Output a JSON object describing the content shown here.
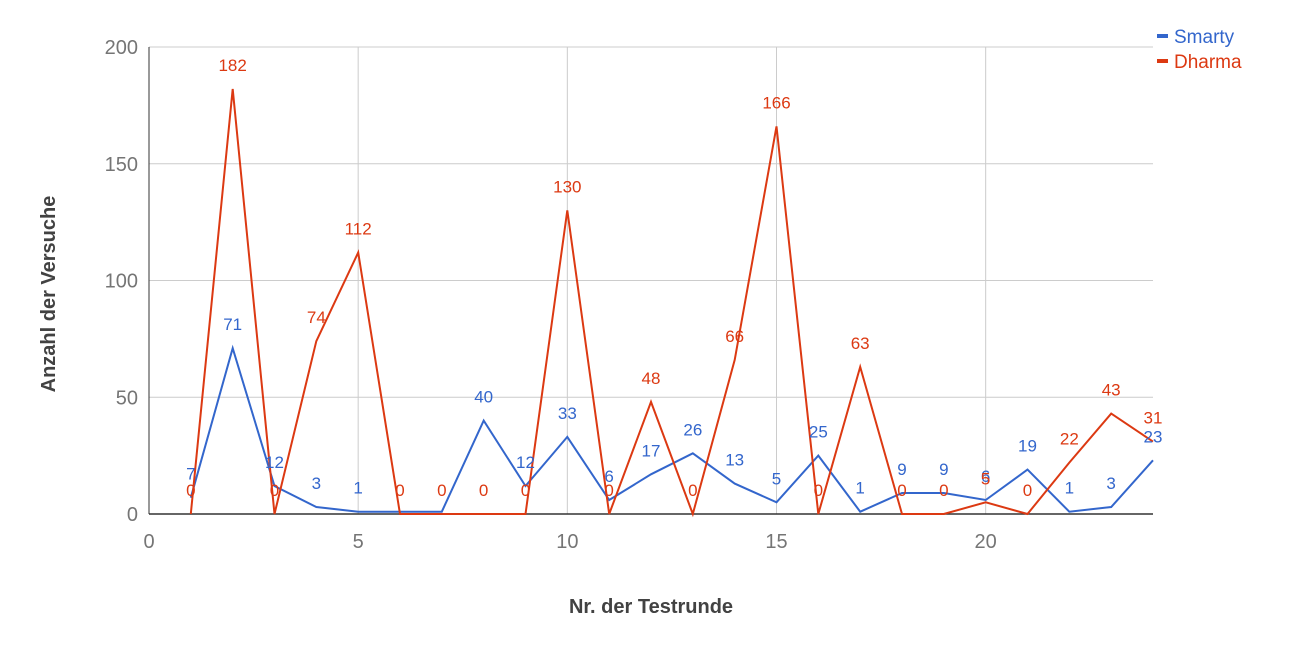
{
  "chart_data": {
    "type": "line",
    "title": "",
    "xlabel": "Nr. der Testrunde",
    "ylabel": "Anzahl der Versuche",
    "xlim": [
      0,
      24
    ],
    "ylim": [
      0,
      200
    ],
    "xticks": [
      0,
      5,
      10,
      15,
      20
    ],
    "yticks": [
      0,
      50,
      100,
      150,
      200
    ],
    "grid": true,
    "legend_position": "top-right",
    "x": [
      1,
      2,
      3,
      4,
      5,
      6,
      7,
      8,
      9,
      10,
      11,
      12,
      13,
      14,
      15,
      16,
      17,
      18,
      19,
      20,
      21,
      22,
      23,
      24
    ],
    "series": [
      {
        "name": "Smarty",
        "color": "#3366cc",
        "values": [
          7,
          71,
          12,
          3,
          1,
          1,
          1,
          40,
          12,
          33,
          6,
          17,
          26,
          13,
          5,
          25,
          1,
          9,
          9,
          6,
          19,
          1,
          3,
          23
        ],
        "labels": [
          "7",
          "71",
          "12",
          "3",
          "1",
          "",
          "",
          "40",
          "12",
          "33",
          "6",
          "17",
          "26",
          "13",
          "5",
          "25",
          "1",
          "9",
          "9",
          "6",
          "19",
          "1",
          "3",
          "23"
        ]
      },
      {
        "name": "Dharma",
        "color": "#dc3912",
        "values": [
          0,
          182,
          0,
          74,
          112,
          0,
          0,
          0,
          0,
          130,
          0,
          48,
          0,
          66,
          166,
          0,
          63,
          0,
          0,
          5,
          0,
          22,
          43,
          31
        ],
        "labels": [
          "0",
          "182",
          "0",
          "74",
          "112",
          "0",
          "0",
          "0",
          "0",
          "130",
          "0",
          "48",
          "0",
          "66",
          "166",
          "0",
          "63",
          "0",
          "0",
          "5",
          "0",
          "22",
          "43",
          "31"
        ]
      }
    ]
  }
}
